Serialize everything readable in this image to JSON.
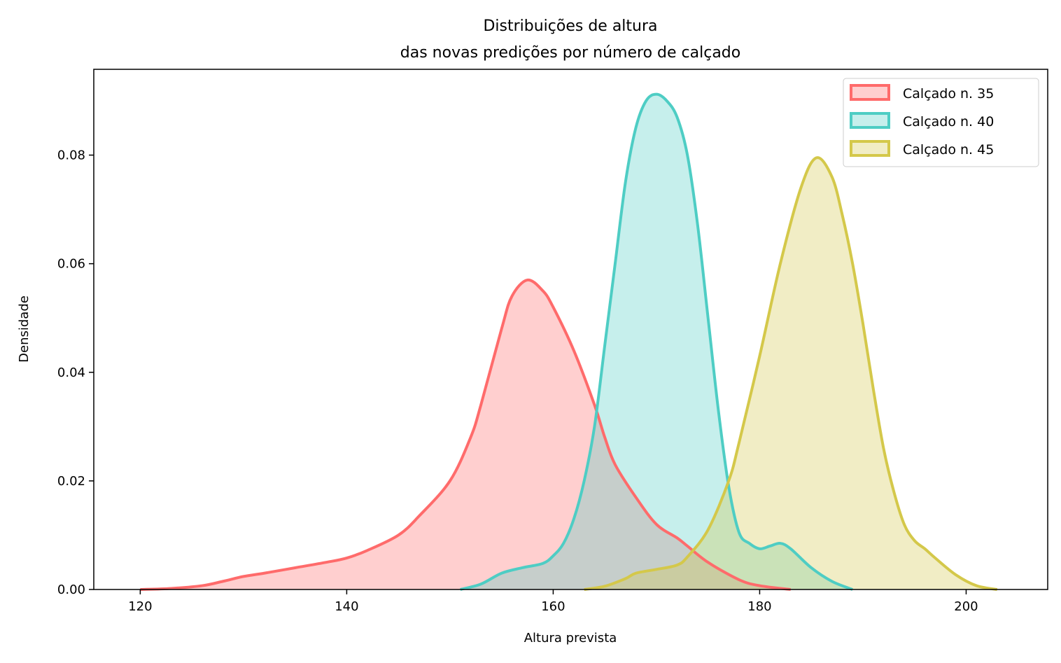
{
  "chart_data": {
    "type": "area",
    "title": "Distribuições de altura\ndas novas predições por número de calçado",
    "title_lines": [
      "Distribuições de altura",
      "das novas predições por número de calçado"
    ],
    "xlabel": "Altura prevista",
    "ylabel": "Densidade",
    "xlim": [
      115.5,
      207.9
    ],
    "ylim": [
      0,
      0.0958
    ],
    "xticks": [
      120,
      140,
      160,
      180,
      200
    ],
    "xtick_labels": [
      "120",
      "140",
      "160",
      "180",
      "200"
    ],
    "yticks": [
      0,
      0.02,
      0.04,
      0.06,
      0.08
    ],
    "ytick_labels": [
      "0.00",
      "0.02",
      "0.04",
      "0.06",
      "0.08"
    ],
    "grid": false,
    "legend_position": "top-right",
    "series": [
      {
        "name": "Calçado n. 35",
        "color": "#ff6b6b",
        "x": [
          120,
          123,
          126,
          128,
          130,
          132,
          135,
          138,
          140,
          142,
          145,
          147,
          150,
          152,
          153,
          155,
          156,
          157.5,
          159,
          160,
          162,
          164,
          165,
          166,
          168,
          170,
          172,
          173,
          175,
          178,
          180,
          183
        ],
        "y": [
          0,
          0.0002,
          0.0007,
          0.0015,
          0.0024,
          0.003,
          0.004,
          0.005,
          0.0058,
          0.0072,
          0.01,
          0.0135,
          0.02,
          0.028,
          0.034,
          0.048,
          0.054,
          0.057,
          0.055,
          0.052,
          0.044,
          0.034,
          0.028,
          0.023,
          0.017,
          0.012,
          0.0095,
          0.008,
          0.005,
          0.0018,
          0.0007,
          0
        ]
      },
      {
        "name": "Calçado n. 40",
        "color": "#4ecdc4",
        "x": [
          151,
          153,
          155,
          157,
          159,
          160,
          161,
          162,
          163,
          164,
          165,
          166,
          167,
          168,
          169,
          170,
          171,
          172,
          173,
          174,
          175,
          176,
          177,
          178,
          179,
          180,
          181,
          182,
          183,
          185,
          187,
          189
        ],
        "y": [
          0,
          0.001,
          0.003,
          0.004,
          0.0048,
          0.0062,
          0.0085,
          0.013,
          0.02,
          0.03,
          0.045,
          0.06,
          0.075,
          0.085,
          0.09,
          0.0912,
          0.09,
          0.087,
          0.08,
          0.067,
          0.05,
          0.033,
          0.019,
          0.0105,
          0.0085,
          0.0075,
          0.008,
          0.0085,
          0.0075,
          0.004,
          0.0015,
          0
        ]
      },
      {
        "name": "Calçado n. 45",
        "color": "#d4c84a",
        "x": [
          163,
          165,
          167,
          168,
          170,
          172,
          173,
          175,
          177,
          178,
          180,
          182,
          184,
          185.5,
          187,
          188,
          189,
          190,
          191,
          192,
          193,
          194,
          195,
          196,
          197,
          199,
          201,
          203
        ],
        "y": [
          0,
          0.0006,
          0.002,
          0.003,
          0.0037,
          0.0045,
          0.006,
          0.011,
          0.02,
          0.027,
          0.043,
          0.06,
          0.074,
          0.0795,
          0.076,
          0.069,
          0.06,
          0.049,
          0.037,
          0.026,
          0.018,
          0.012,
          0.009,
          0.0075,
          0.0058,
          0.0027,
          0.0007,
          0
        ]
      }
    ]
  }
}
